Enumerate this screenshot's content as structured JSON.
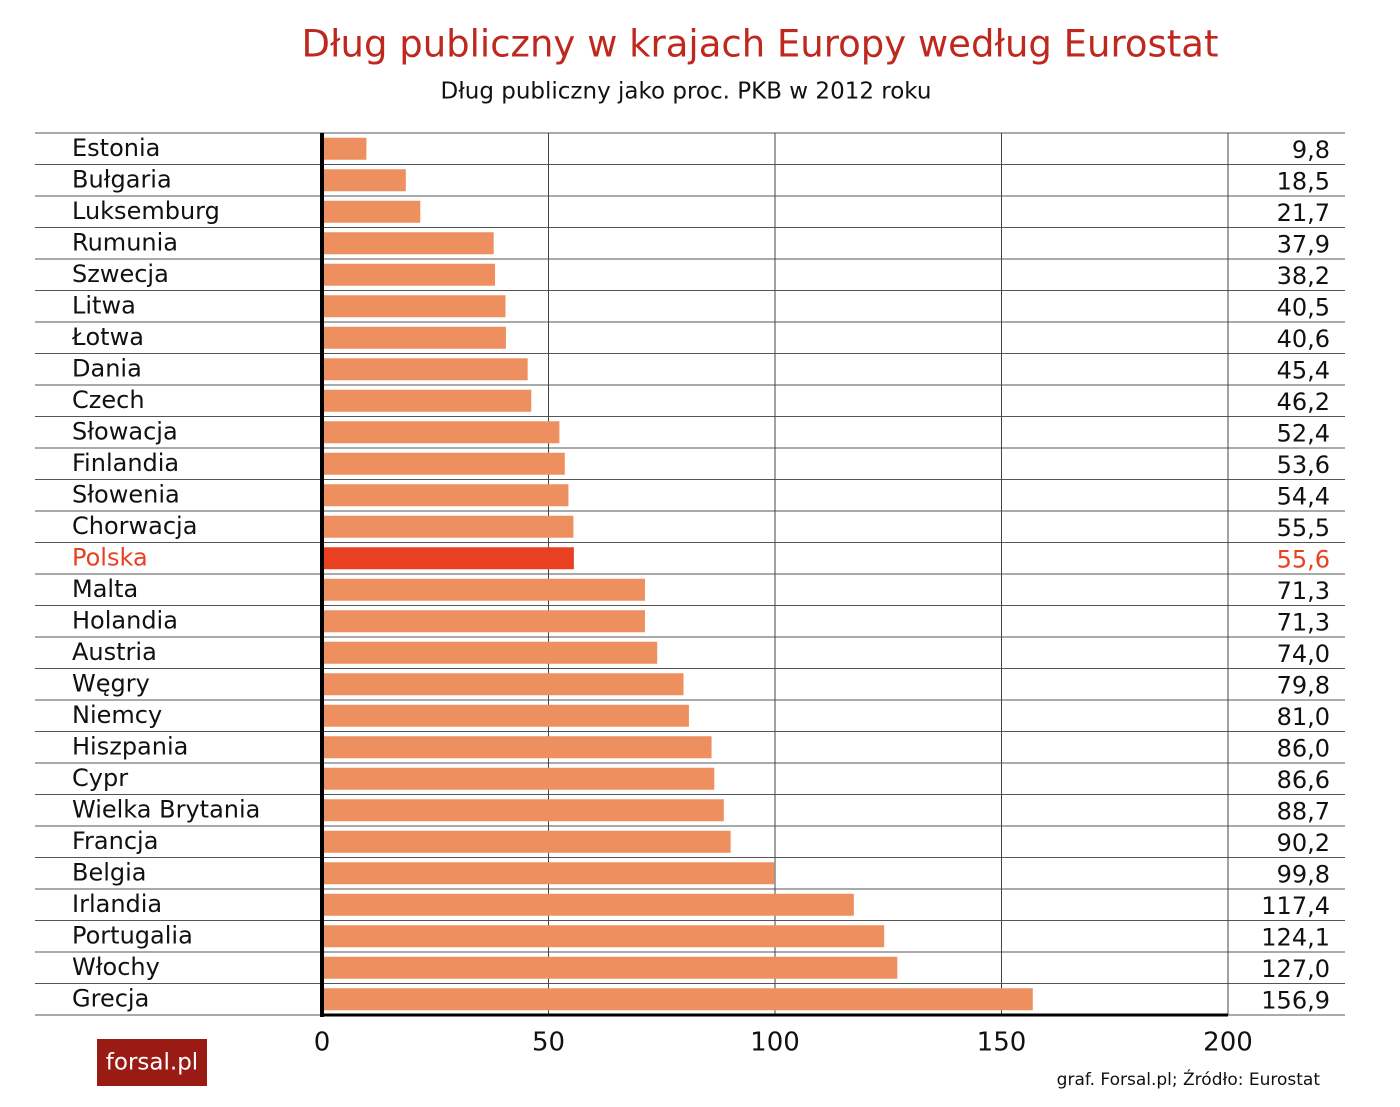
{
  "chart_data": {
    "type": "barh",
    "title": "Dług publiczny w krajach Europy według Eurostat",
    "subtitle": "Dług publiczny jako proc. PKB w 2012 roku",
    "source": "graf. Forsal.pl; Źródło: Eurostat",
    "logo": "forsal.pl",
    "categories": [
      "Estonia",
      "Bułgaria",
      "Luksemburg",
      "Rumunia",
      "Szwecja",
      "Litwa",
      "Łotwa",
      "Dania",
      "Czech",
      "Słowacja",
      "Finlandia",
      "Słowenia",
      "Chorwacja",
      "Polska",
      "Malta",
      "Holandia",
      "Austria",
      "Węgry",
      "Niemcy",
      "Hiszpania",
      "Cypr",
      "Wielka Brytania",
      "Francja",
      "Belgia",
      "Irlandia",
      "Portugalia",
      "Włochy",
      "Grecja"
    ],
    "values": [
      9.8,
      18.5,
      21.7,
      37.9,
      38.2,
      40.5,
      40.6,
      45.4,
      46.2,
      52.4,
      53.6,
      54.4,
      55.5,
      55.6,
      71.3,
      71.3,
      74.0,
      79.8,
      81.0,
      86.0,
      86.6,
      88.7,
      90.2,
      99.8,
      117.4,
      124.1,
      127.0,
      156.9
    ],
    "value_labels": [
      "9,8",
      "18,5",
      "21,7",
      "37,9",
      "38,2",
      "40,5",
      "40,6",
      "45,4",
      "46,2",
      "52,4",
      "53,6",
      "54,4",
      "55,5",
      "55,6",
      "71,3",
      "71,3",
      "74,0",
      "79,8",
      "81,0",
      "86,0",
      "86,6",
      "88,7",
      "90,2",
      "99,8",
      "117,4",
      "124,1",
      "127,0",
      "156,9"
    ],
    "color": "#ee8f5f",
    "colors": [
      "#ee8f5f",
      "#ee8f5f",
      "#ee8f5f",
      "#ee8f5f",
      "#ee8f5f",
      "#ee8f5f",
      "#ee8f5f",
      "#ee8f5f",
      "#ee8f5f",
      "#ee8f5f",
      "#ee8f5f",
      "#ee8f5f",
      "#ee8f5f",
      "#e84020",
      "#ee8f5f",
      "#ee8f5f",
      "#ee8f5f",
      "#ee8f5f",
      "#ee8f5f",
      "#ee8f5f",
      "#ee8f5f",
      "#ee8f5f",
      "#ee8f5f",
      "#ee8f5f",
      "#ee8f5f",
      "#ee8f5f",
      "#ee8f5f",
      "#ee8f5f"
    ],
    "xlim": [
      0,
      200
    ],
    "xticks": [
      0,
      50,
      100,
      150,
      200
    ],
    "grid": true
  }
}
